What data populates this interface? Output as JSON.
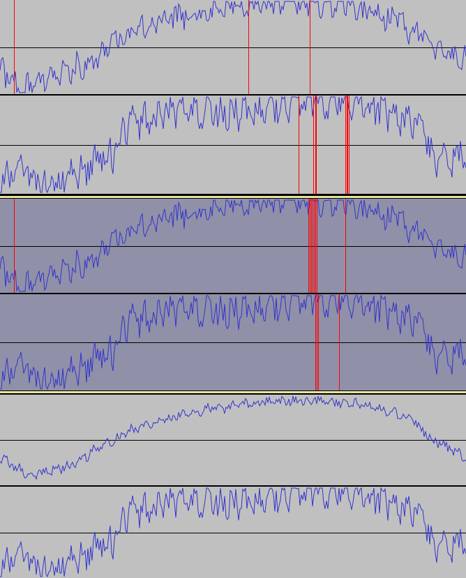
{
  "app": {
    "name": "audio-editor-waveform-view",
    "colors": {
      "background": "#c0c0c0",
      "selected_background": "#9090a8",
      "waveform": "#3333cc",
      "clip_marker": "#ff0000",
      "center_line": "#000000",
      "separator": "#000000",
      "selection_edge": "#e6e6a0"
    }
  },
  "tracks": [
    {
      "id": "track-1",
      "channels": [
        {
          "id": "t1-ch1",
          "selected": false,
          "profile": "A",
          "clip_markers_at_fraction": [
            0.03,
            0.533,
            0.665
          ]
        },
        {
          "id": "t1-ch2",
          "selected": false,
          "profile": "B",
          "clip_markers_at_fraction": [
            0.641,
            0.672,
            0.676,
            0.678,
            0.741,
            0.744,
            0.746,
            0.748
          ]
        }
      ]
    },
    {
      "id": "track-2",
      "selected": true,
      "channels": [
        {
          "id": "t2-ch1",
          "selected": true,
          "profile": "A",
          "clip_markers_at_fraction": [
            0.03,
            0.661,
            0.664,
            0.667,
            0.67,
            0.673,
            0.676,
            0.679,
            0.741
          ]
        },
        {
          "id": "t2-ch2",
          "selected": true,
          "profile": "B",
          "clip_markers_at_fraction": [
            0.677,
            0.68,
            0.683,
            0.727
          ]
        }
      ]
    },
    {
      "id": "track-3",
      "channels": [
        {
          "id": "t3-ch1",
          "selected": false,
          "profile": "A-smooth",
          "clip_markers_at_fraction": []
        },
        {
          "id": "t3-ch2",
          "selected": false,
          "profile": "B",
          "clip_markers_at_fraction": []
        }
      ]
    }
  ]
}
